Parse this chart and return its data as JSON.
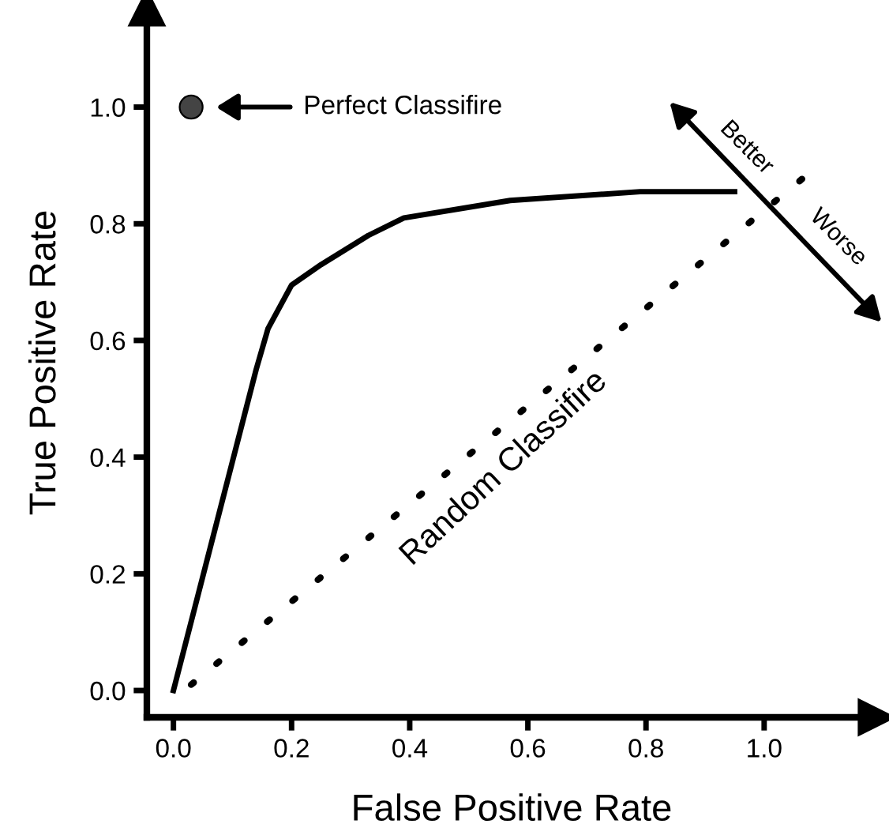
{
  "chart_data": {
    "type": "line",
    "xlabel": "False Positive Rate",
    "ylabel": "True Positive Rate",
    "xlim": [
      -0.045,
      1.19
    ],
    "ylim": [
      -0.046,
      1.17
    ],
    "xticks": [
      {
        "value": 0,
        "label": "0.0"
      },
      0.2,
      0.4,
      0.6,
      0.8,
      {
        "value": 1,
        "label": "1.0"
      }
    ],
    "yticks": [
      {
        "value": 0,
        "label": "0.0"
      },
      0.2,
      0.4,
      0.6,
      0.8,
      {
        "value": 1,
        "label": "1.0"
      }
    ],
    "grid": false,
    "series": [
      {
        "color": "#000000",
        "line_style": "solid",
        "x": [
          0.0,
          0.14,
          0.16,
          0.2,
          0.25,
          0.33,
          0.39,
          0.57,
          0.79,
          0.95
        ],
        "values": [
          0.0,
          0.55,
          0.62,
          0.695,
          0.73,
          0.78,
          0.81,
          0.84,
          0.855,
          0.855
        ]
      },
      {
        "type": "line",
        "color": "#000000",
        "line_style": "dotted",
        "x": [
          0.03,
          1.08
        ],
        "values": [
          0.01,
          0.89
        ]
      },
      {
        "type": "scatter",
        "color": "#444444",
        "marker": "circle",
        "x": [
          0.03
        ],
        "values": [
          1.0
        ]
      }
    ],
    "annotations": [
      "Perfect Classifire",
      "Random Classifire",
      "Better",
      "Worse"
    ]
  }
}
